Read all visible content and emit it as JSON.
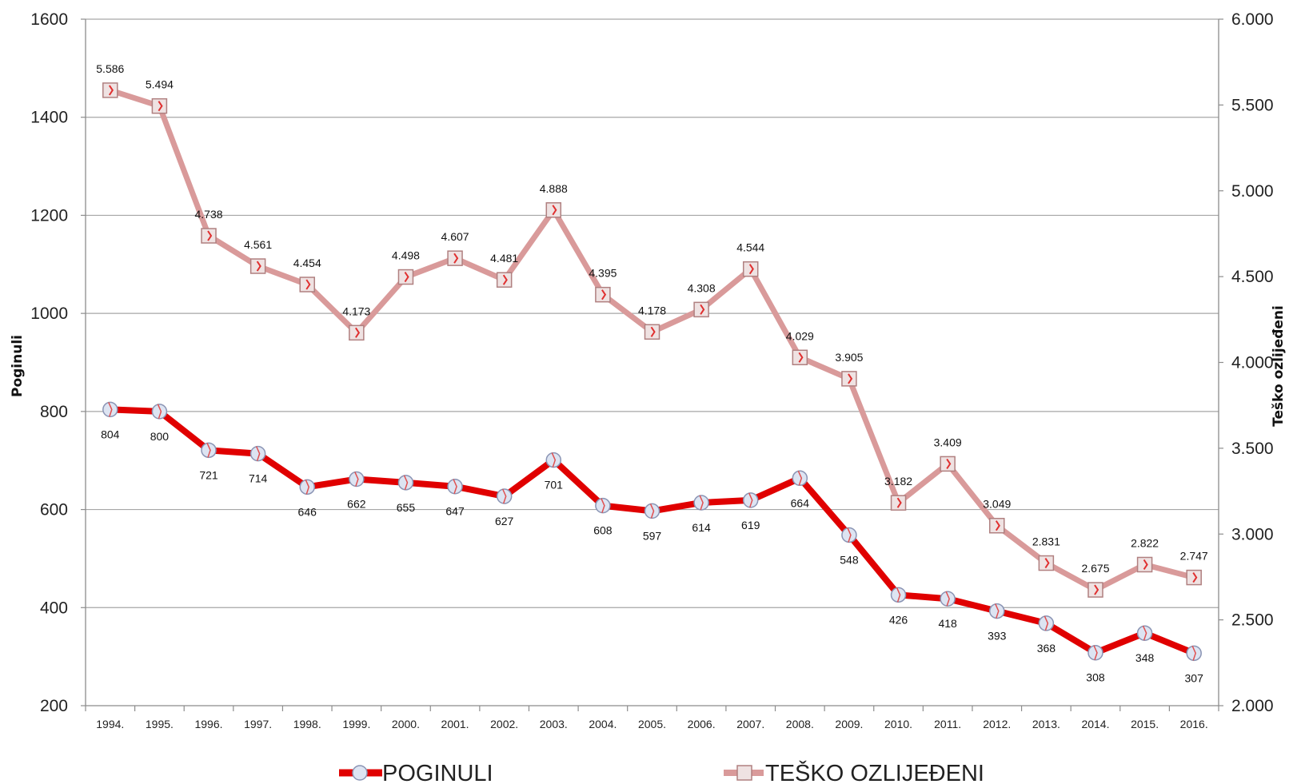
{
  "chart_data": {
    "type": "line",
    "categories": [
      "1994.",
      "1995.",
      "1996.",
      "1997.",
      "1998.",
      "1999.",
      "2000.",
      "2001.",
      "2002.",
      "2003.",
      "2004.",
      "2005.",
      "2006.",
      "2007.",
      "2008.",
      "2009.",
      "2010.",
      "2011.",
      "2012.",
      "2013.",
      "2014.",
      "2015.",
      "2016."
    ],
    "series": [
      {
        "name": "POGINULI",
        "axis": "left",
        "color": "#e00000",
        "marker": "circle",
        "values": [
          804,
          800,
          721,
          714,
          646,
          662,
          655,
          647,
          627,
          701,
          608,
          597,
          614,
          619,
          664,
          548,
          426,
          418,
          393,
          368,
          308,
          348,
          307
        ],
        "labels": [
          "804",
          "800",
          "721",
          "714",
          "646",
          "662",
          "655",
          "647",
          "627",
          "701",
          "608",
          "597",
          "614",
          "619",
          "664",
          "548",
          "426",
          "418",
          "393",
          "368",
          "308",
          "348",
          "307"
        ],
        "label_position": "below"
      },
      {
        "name": "TEŠKO OZLIJEĐENI",
        "axis": "right",
        "color": "#d99a9a",
        "marker": "square",
        "values": [
          5586,
          5494,
          4738,
          4561,
          4454,
          4173,
          4498,
          4607,
          4481,
          4888,
          4395,
          4178,
          4308,
          4544,
          4029,
          3905,
          3182,
          3409,
          3049,
          2831,
          2675,
          2822,
          2747
        ],
        "labels": [
          "5.586",
          "5.494",
          "4.738",
          "4.561",
          "4.454",
          "4.173",
          "4.498",
          "4.607",
          "4.481",
          "4.888",
          "4.395",
          "4.178",
          "4.308",
          "4.544",
          "4.029",
          "3.905",
          "3.182",
          "3.409",
          "3.049",
          "2.831",
          "2.675",
          "2.822",
          "2.747"
        ],
        "label_position": "above"
      }
    ],
    "y_left": {
      "label": "Poginuli",
      "ylim": [
        200,
        1600
      ],
      "ticks": [
        200,
        400,
        600,
        800,
        1000,
        1200,
        1400,
        1600
      ],
      "tick_labels": [
        "200",
        "400",
        "600",
        "800",
        "1000",
        "1200",
        "1400",
        "1600"
      ]
    },
    "y_right": {
      "label": "Teško ozlijeđeni",
      "ylim": [
        2000,
        6000
      ],
      "ticks": [
        2000,
        2500,
        3000,
        3500,
        4000,
        4500,
        5000,
        5500,
        6000
      ],
      "tick_labels": [
        "2.000",
        "2.500",
        "3.000",
        "3.500",
        "4.000",
        "4.500",
        "5.000",
        "5.500",
        "6.000"
      ]
    },
    "grid": true,
    "legend": {
      "position": "bottom",
      "items": [
        "POGINULI",
        "TEŠKO OZLIJEĐENI"
      ]
    }
  }
}
